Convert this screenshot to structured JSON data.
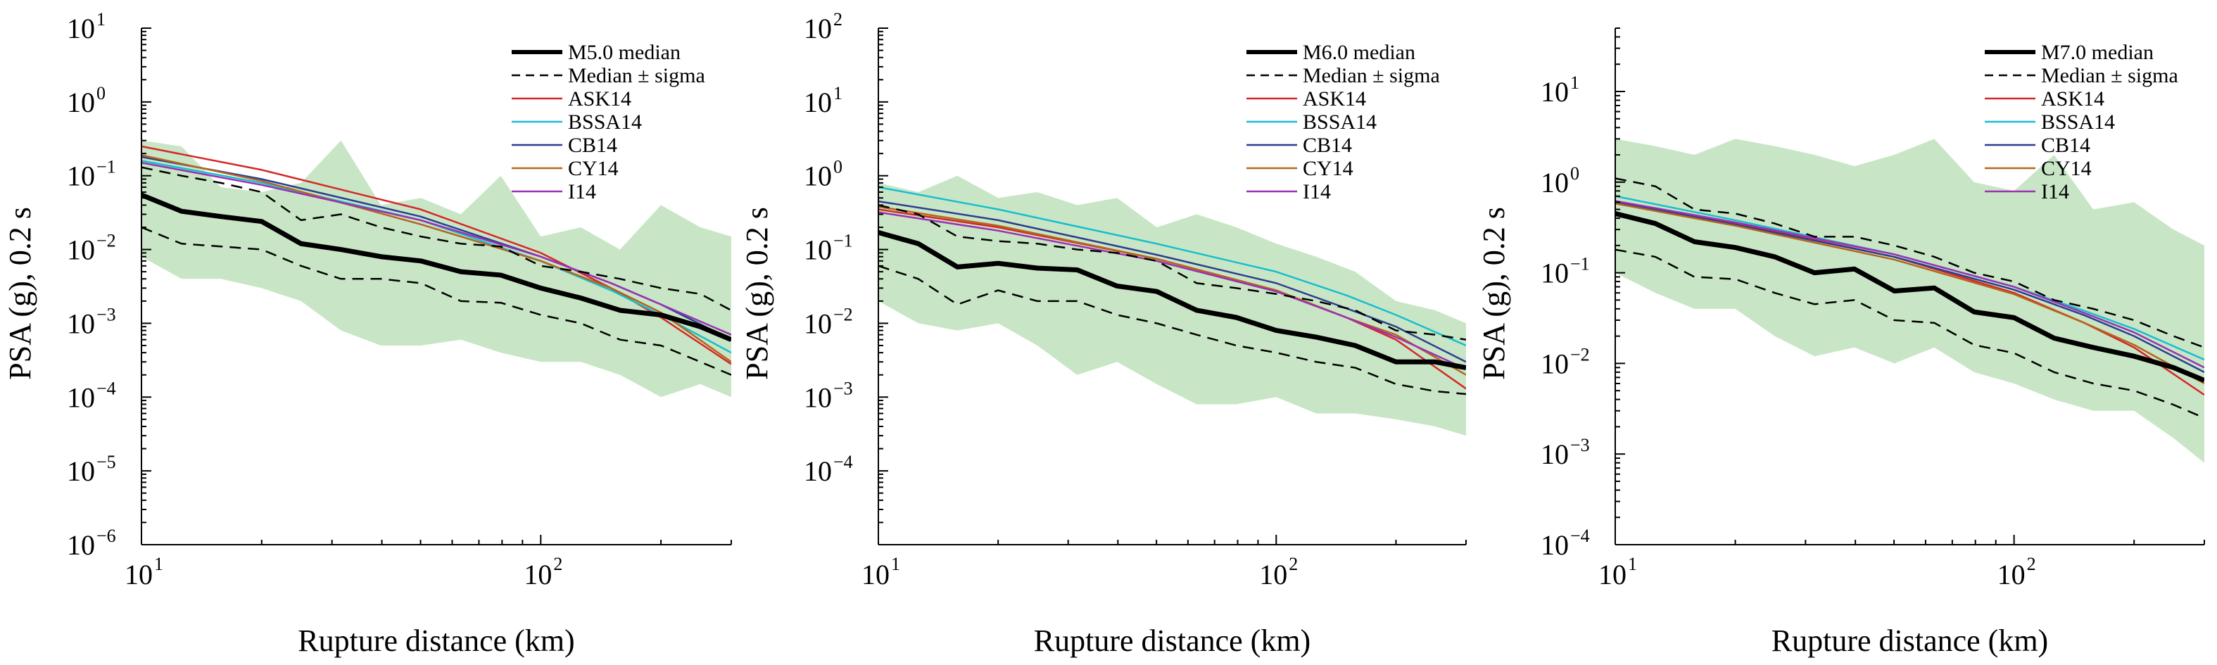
{
  "chart_data": [
    {
      "type": "line",
      "title": "",
      "xlabel": "Rupture distance (km)",
      "ylabel": "PSA (g), 0.2 s",
      "x_scale": "log",
      "y_scale": "log",
      "xlim": [
        10,
        300
      ],
      "ylim": [
        1e-06,
        10
      ],
      "x_ticks": [
        10,
        100
      ],
      "x_tick_labels": [
        {
          "base": "10",
          "exp": "1"
        },
        {
          "base": "10",
          "exp": "2"
        }
      ],
      "y_ticks": [
        1e-06,
        1e-05,
        0.0001,
        0.001,
        0.01,
        0.1,
        1,
        10
      ],
      "y_tick_labels": [
        {
          "base": "10",
          "exp": "-6"
        },
        {
          "base": "10",
          "exp": "-5"
        },
        {
          "base": "10",
          "exp": "-4"
        },
        {
          "base": "10",
          "exp": "-3"
        },
        {
          "base": "10",
          "exp": "-2"
        },
        {
          "base": "10",
          "exp": "-1"
        },
        {
          "base": "10",
          "exp": "0"
        },
        {
          "base": "10",
          "exp": "1"
        }
      ],
      "grid": false,
      "legend_position": "top-right",
      "legend": [
        "M5.0 median",
        "Median ± sigma",
        "ASK14",
        "BSSA14",
        "CB14",
        "CY14",
        "I14"
      ],
      "x": [
        10,
        12.6,
        15.8,
        20,
        25.1,
        31.6,
        39.8,
        50.1,
        63.1,
        79.4,
        100,
        126,
        158,
        200,
        251,
        300
      ],
      "band": {
        "upper": [
          0.3,
          0.25,
          0.07,
          0.06,
          0.08,
          0.3,
          0.04,
          0.05,
          0.03,
          0.1,
          0.015,
          0.02,
          0.01,
          0.04,
          0.02,
          0.015
        ],
        "lower": [
          0.008,
          0.004,
          0.004,
          0.003,
          0.002,
          0.0008,
          0.0005,
          0.0005,
          0.0006,
          0.0004,
          0.0003,
          0.0003,
          0.0002,
          0.0001,
          0.00015,
          0.0001
        ]
      },
      "series": [
        {
          "name": "M5.0 median",
          "color": "#000000",
          "style": "thick",
          "x": [
            10,
            12.6,
            15.8,
            20,
            25.1,
            31.6,
            39.8,
            50.1,
            63.1,
            79.4,
            100,
            126,
            158,
            200,
            251,
            300
          ],
          "values": [
            0.055,
            0.033,
            0.028,
            0.024,
            0.012,
            0.01,
            0.008,
            0.007,
            0.005,
            0.0045,
            0.003,
            0.0022,
            0.0015,
            0.0013,
            0.0009,
            0.0006
          ]
        },
        {
          "name": "Median ± sigma",
          "color": "#000000",
          "style": "dashed",
          "x": [
            10,
            12.6,
            15.8,
            20,
            25.1,
            31.6,
            39.8,
            50.1,
            63.1,
            79.4,
            100,
            126,
            158,
            200,
            251,
            300
          ],
          "values": [
            0.13,
            0.1,
            0.08,
            0.06,
            0.025,
            0.03,
            0.02,
            0.015,
            0.012,
            0.011,
            0.006,
            0.005,
            0.004,
            0.003,
            0.0025,
            0.0015
          ]
        },
        {
          "name": "",
          "color": "#000000",
          "style": "dashed",
          "x": [
            10,
            12.6,
            15.8,
            20,
            25.1,
            31.6,
            39.8,
            50.1,
            63.1,
            79.4,
            100,
            126,
            158,
            200,
            251,
            300
          ],
          "values": [
            0.02,
            0.012,
            0.011,
            0.01,
            0.006,
            0.004,
            0.004,
            0.0035,
            0.002,
            0.0019,
            0.0013,
            0.001,
            0.0006,
            0.0005,
            0.0003,
            0.0002
          ]
        },
        {
          "name": "ASK14",
          "color": "#d62728",
          "style": "solid",
          "x": [
            10,
            20,
            50,
            100,
            150,
            200,
            300
          ],
          "values": [
            0.25,
            0.12,
            0.035,
            0.009,
            0.003,
            0.0012,
            0.00028
          ]
        },
        {
          "name": "BSSA14",
          "color": "#17becf",
          "style": "solid",
          "x": [
            10,
            20,
            50,
            100,
            150,
            200,
            300
          ],
          "values": [
            0.16,
            0.08,
            0.025,
            0.007,
            0.0028,
            0.0013,
            0.0004
          ]
        },
        {
          "name": "CB14",
          "color": "#2c3e8f",
          "style": "solid",
          "x": [
            10,
            20,
            50,
            100,
            150,
            200,
            300
          ],
          "values": [
            0.18,
            0.09,
            0.028,
            0.008,
            0.0035,
            0.0018,
            0.0006
          ]
        },
        {
          "name": "CY14",
          "color": "#b5651d",
          "style": "solid",
          "x": [
            10,
            20,
            50,
            100,
            150,
            200,
            300
          ],
          "values": [
            0.19,
            0.085,
            0.022,
            0.007,
            0.003,
            0.0014,
            0.0003
          ]
        },
        {
          "name": "I14",
          "color": "#9b30b5",
          "style": "solid",
          "x": [
            10,
            20,
            50,
            100,
            150,
            200,
            300
          ],
          "values": [
            0.15,
            0.075,
            0.025,
            0.008,
            0.0035,
            0.0018,
            0.0007
          ]
        }
      ]
    },
    {
      "type": "line",
      "title": "",
      "xlabel": "Rupture distance (km)",
      "ylabel": "PSA (g), 0.2 s",
      "x_scale": "log",
      "y_scale": "log",
      "xlim": [
        10,
        300
      ],
      "ylim": [
        1e-05,
        100
      ],
      "x_ticks": [
        10,
        100
      ],
      "x_tick_labels": [
        {
          "base": "10",
          "exp": "1"
        },
        {
          "base": "10",
          "exp": "2"
        }
      ],
      "y_ticks": [
        0.0001,
        0.001,
        0.01,
        0.1,
        1,
        10,
        100
      ],
      "y_tick_labels": [
        {
          "base": "10",
          "exp": "-4"
        },
        {
          "base": "10",
          "exp": "-3"
        },
        {
          "base": "10",
          "exp": "-2"
        },
        {
          "base": "10",
          "exp": "-1"
        },
        {
          "base": "10",
          "exp": "0"
        },
        {
          "base": "10",
          "exp": "1"
        },
        {
          "base": "10",
          "exp": "2"
        }
      ],
      "grid": false,
      "legend_position": "top-right",
      "legend": [
        "M6.0 median",
        "Median ± sigma",
        "ASK14",
        "BSSA14",
        "CB14",
        "CY14",
        "I14"
      ],
      "x": [
        10,
        12.6,
        15.8,
        20,
        25.1,
        31.6,
        39.8,
        50.1,
        63.1,
        79.4,
        100,
        126,
        158,
        200,
        251,
        300
      ],
      "band": {
        "upper": [
          0.8,
          0.6,
          1.0,
          0.5,
          0.6,
          0.4,
          0.5,
          0.2,
          0.3,
          0.2,
          0.12,
          0.08,
          0.05,
          0.02,
          0.015,
          0.01
        ],
        "lower": [
          0.02,
          0.01,
          0.008,
          0.01,
          0.005,
          0.002,
          0.003,
          0.0015,
          0.0008,
          0.0008,
          0.001,
          0.0006,
          0.0006,
          0.0005,
          0.0004,
          0.0003
        ]
      },
      "series": [
        {
          "name": "M6.0 median",
          "color": "#000000",
          "style": "thick",
          "x": [
            10,
            12.6,
            15.8,
            20,
            25.1,
            31.6,
            39.8,
            50.1,
            63.1,
            79.4,
            100,
            126,
            158,
            200,
            251,
            300
          ],
          "values": [
            0.17,
            0.12,
            0.058,
            0.065,
            0.056,
            0.053,
            0.032,
            0.027,
            0.015,
            0.012,
            0.008,
            0.0065,
            0.005,
            0.003,
            0.003,
            0.0025
          ]
        },
        {
          "name": "Median ± sigma",
          "color": "#000000",
          "style": "dashed",
          "x": [
            10,
            12.6,
            15.8,
            20,
            25.1,
            31.6,
            39.8,
            50.1,
            63.1,
            79.4,
            100,
            126,
            158,
            200,
            251,
            300
          ],
          "values": [
            0.4,
            0.3,
            0.15,
            0.13,
            0.12,
            0.1,
            0.09,
            0.07,
            0.035,
            0.03,
            0.025,
            0.02,
            0.015,
            0.008,
            0.007,
            0.006
          ]
        },
        {
          "name": "",
          "color": "#000000",
          "style": "dashed",
          "x": [
            10,
            12.6,
            15.8,
            20,
            25.1,
            31.6,
            39.8,
            50.1,
            63.1,
            79.4,
            100,
            126,
            158,
            200,
            251,
            300
          ],
          "values": [
            0.06,
            0.04,
            0.018,
            0.028,
            0.02,
            0.02,
            0.013,
            0.01,
            0.007,
            0.005,
            0.004,
            0.003,
            0.0025,
            0.0015,
            0.0012,
            0.0011
          ]
        },
        {
          "name": "ASK14",
          "color": "#d62728",
          "style": "solid",
          "x": [
            10,
            20,
            50,
            100,
            150,
            200,
            300
          ],
          "values": [
            0.35,
            0.2,
            0.075,
            0.028,
            0.012,
            0.006,
            0.0013
          ]
        },
        {
          "name": "BSSA14",
          "color": "#17becf",
          "style": "solid",
          "x": [
            10,
            20,
            50,
            100,
            150,
            200,
            300
          ],
          "values": [
            0.7,
            0.35,
            0.12,
            0.05,
            0.024,
            0.013,
            0.005
          ]
        },
        {
          "name": "CB14",
          "color": "#2c3e8f",
          "style": "solid",
          "x": [
            10,
            20,
            50,
            100,
            150,
            200,
            300
          ],
          "values": [
            0.45,
            0.25,
            0.085,
            0.035,
            0.016,
            0.009,
            0.003
          ]
        },
        {
          "name": "CY14",
          "color": "#b5651d",
          "style": "solid",
          "x": [
            10,
            20,
            50,
            100,
            150,
            200,
            300
          ],
          "values": [
            0.38,
            0.21,
            0.075,
            0.028,
            0.012,
            0.007,
            0.002
          ]
        },
        {
          "name": "I14",
          "color": "#9b30b5",
          "style": "solid",
          "x": [
            10,
            20,
            50,
            100,
            150,
            200,
            300
          ],
          "values": [
            0.32,
            0.18,
            0.07,
            0.027,
            0.012,
            0.0065,
            0.0024
          ]
        }
      ]
    },
    {
      "type": "line",
      "title": "",
      "xlabel": "Rupture distance (km)",
      "ylabel": "PSA (g), 0.2 s",
      "x_scale": "log",
      "y_scale": "log",
      "xlim": [
        10,
        300
      ],
      "ylim": [
        0.0001,
        50
      ],
      "x_ticks": [
        10,
        100
      ],
      "x_tick_labels": [
        {
          "base": "10",
          "exp": "1"
        },
        {
          "base": "10",
          "exp": "2"
        }
      ],
      "y_ticks": [
        0.0001,
        0.001,
        0.01,
        0.1,
        1,
        10
      ],
      "y_tick_labels": [
        {
          "base": "10",
          "exp": "-4"
        },
        {
          "base": "10",
          "exp": "-3"
        },
        {
          "base": "10",
          "exp": "-2"
        },
        {
          "base": "10",
          "exp": "-1"
        },
        {
          "base": "10",
          "exp": "0"
        },
        {
          "base": "10",
          "exp": "1"
        }
      ],
      "grid": false,
      "legend_position": "top-right",
      "legend": [
        "M7.0 median",
        "Median ± sigma",
        "ASK14",
        "BSSA14",
        "CB14",
        "CY14",
        "I14"
      ],
      "x": [
        10,
        12.6,
        15.8,
        20,
        25.1,
        31.6,
        39.8,
        50.1,
        63.1,
        79.4,
        100,
        126,
        158,
        200,
        251,
        300
      ],
      "band": {
        "upper": [
          3.0,
          2.5,
          2.0,
          3.0,
          2.5,
          2.0,
          1.5,
          2.0,
          3.0,
          1.0,
          0.8,
          2.0,
          0.5,
          0.6,
          0.3,
          0.2
        ],
        "lower": [
          0.1,
          0.06,
          0.04,
          0.04,
          0.02,
          0.012,
          0.015,
          0.01,
          0.015,
          0.008,
          0.006,
          0.004,
          0.003,
          0.003,
          0.0015,
          0.0008
        ]
      },
      "series": [
        {
          "name": "M7.0 median",
          "color": "#000000",
          "style": "thick",
          "x": [
            10,
            12.6,
            15.8,
            20,
            25.1,
            31.6,
            39.8,
            50.1,
            63.1,
            79.4,
            100,
            126,
            158,
            200,
            251,
            300
          ],
          "values": [
            0.45,
            0.35,
            0.22,
            0.19,
            0.15,
            0.1,
            0.11,
            0.063,
            0.068,
            0.037,
            0.032,
            0.019,
            0.015,
            0.012,
            0.009,
            0.0065
          ]
        },
        {
          "name": "Median ± sigma",
          "color": "#000000",
          "style": "dashed",
          "x": [
            10,
            12.6,
            15.8,
            20,
            25.1,
            31.6,
            39.8,
            50.1,
            63.1,
            79.4,
            100,
            126,
            158,
            200,
            251,
            300
          ],
          "values": [
            1.1,
            0.9,
            0.5,
            0.45,
            0.35,
            0.25,
            0.25,
            0.2,
            0.15,
            0.1,
            0.08,
            0.05,
            0.04,
            0.03,
            0.02,
            0.015
          ]
        },
        {
          "name": "",
          "color": "#000000",
          "style": "dashed",
          "x": [
            10,
            12.6,
            15.8,
            20,
            25.1,
            31.6,
            39.8,
            50.1,
            63.1,
            79.4,
            100,
            126,
            158,
            200,
            251,
            300
          ],
          "values": [
            0.18,
            0.15,
            0.09,
            0.085,
            0.06,
            0.045,
            0.05,
            0.03,
            0.028,
            0.016,
            0.013,
            0.008,
            0.006,
            0.005,
            0.0035,
            0.0025
          ]
        },
        {
          "name": "ASK14",
          "color": "#d62728",
          "style": "solid",
          "x": [
            10,
            20,
            50,
            100,
            150,
            200,
            300
          ],
          "values": [
            0.6,
            0.35,
            0.15,
            0.06,
            0.028,
            0.015,
            0.0045
          ]
        },
        {
          "name": "BSSA14",
          "color": "#17becf",
          "style": "solid",
          "x": [
            10,
            20,
            50,
            100,
            150,
            200,
            300
          ],
          "values": [
            0.7,
            0.38,
            0.16,
            0.07,
            0.038,
            0.024,
            0.011
          ]
        },
        {
          "name": "CB14",
          "color": "#2c3e8f",
          "style": "solid",
          "x": [
            10,
            20,
            50,
            100,
            150,
            200,
            300
          ],
          "values": [
            0.6,
            0.34,
            0.15,
            0.065,
            0.034,
            0.02,
            0.008
          ]
        },
        {
          "name": "CY14",
          "color": "#b5651d",
          "style": "solid",
          "x": [
            10,
            20,
            50,
            100,
            150,
            200,
            300
          ],
          "values": [
            0.58,
            0.33,
            0.14,
            0.058,
            0.028,
            0.016,
            0.006
          ]
        },
        {
          "name": "I14",
          "color": "#9b30b5",
          "style": "solid",
          "x": [
            10,
            20,
            50,
            100,
            150,
            200,
            300
          ],
          "values": [
            0.62,
            0.36,
            0.16,
            0.07,
            0.036,
            0.022,
            0.009
          ]
        }
      ]
    }
  ],
  "colors": {
    "band_fill": "#c8e6c5",
    "axis": "#000000"
  }
}
